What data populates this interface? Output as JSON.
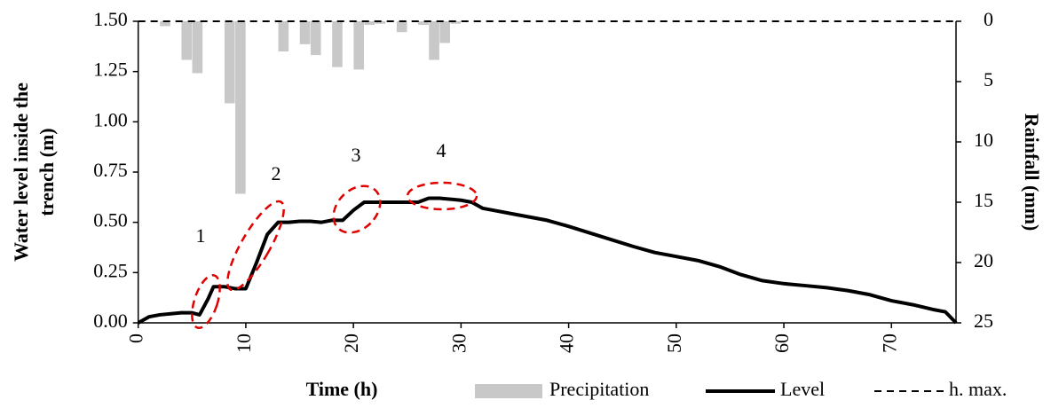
{
  "chart_data": {
    "type": "combo",
    "xlabel": "Time (h)",
    "ylabel": [
      "Water level inside the",
      "trench (m)"
    ],
    "y2label": "Rainfall (mm)",
    "xlim": [
      0,
      76
    ],
    "xticks": [
      0,
      10,
      20,
      30,
      40,
      50,
      60,
      70
    ],
    "ylim": [
      0,
      1.5
    ],
    "yticks": [
      {
        "value": 0,
        "label": "0.00"
      },
      {
        "value": 0.25,
        "label": "0.25"
      },
      {
        "value": 0.5,
        "label": "0.50"
      },
      {
        "value": 0.75,
        "label": "0.75"
      },
      {
        "value": 1,
        "label": "1.00"
      },
      {
        "value": 1.25,
        "label": "1.25"
      },
      {
        "value": 1.5,
        "label": "1.50"
      }
    ],
    "y2lim": [
      25,
      0
    ],
    "y2ticks": [
      0,
      5,
      10,
      15,
      20,
      25
    ],
    "annotations": [
      "1",
      "2",
      "3",
      "4"
    ],
    "series": [
      {
        "name": "Precipitation",
        "type": "bar",
        "axis": "y2",
        "color": "#c8c8c8",
        "x": [
          2.5,
          4.5,
          5.5,
          8.5,
          9.5,
          13.5,
          15.5,
          16.5,
          18.5,
          20.5,
          21.5,
          22.5,
          24.5,
          26.5,
          27.5,
          28.5,
          29.5
        ],
        "values": [
          0.4,
          3.2,
          4.3,
          6.8,
          14.3,
          2.5,
          1.9,
          2.8,
          3.8,
          4.0,
          0.3,
          0.2,
          0.9,
          0.3,
          3.2,
          1.8,
          0.2
        ]
      },
      {
        "name": "Level",
        "type": "line",
        "color": "#000000",
        "x": [
          0,
          1,
          2,
          4,
          5,
          5.7,
          6.5,
          7,
          8,
          9,
          10,
          11,
          12,
          13,
          14,
          15,
          16,
          17,
          18,
          19,
          20,
          21,
          22,
          24,
          26,
          27,
          28,
          30,
          31,
          32,
          33,
          35,
          38,
          40,
          43,
          46,
          48,
          50,
          52,
          54,
          56,
          58,
          60,
          62,
          64,
          66,
          68,
          70,
          72,
          74,
          75,
          76
        ],
        "values": [
          0,
          0.03,
          0.04,
          0.05,
          0.05,
          0.04,
          0.12,
          0.18,
          0.18,
          0.17,
          0.17,
          0.3,
          0.44,
          0.5,
          0.5,
          0.505,
          0.505,
          0.5,
          0.51,
          0.51,
          0.56,
          0.6,
          0.6,
          0.6,
          0.6,
          0.62,
          0.62,
          0.61,
          0.6,
          0.57,
          0.56,
          0.54,
          0.51,
          0.48,
          0.43,
          0.38,
          0.35,
          0.33,
          0.31,
          0.28,
          0.24,
          0.21,
          0.195,
          0.185,
          0.175,
          0.16,
          0.14,
          0.11,
          0.09,
          0.065,
          0.055,
          0
        ]
      },
      {
        "name": "h. max.",
        "type": "hline",
        "color": "#000000",
        "dashed": true,
        "values": [
          1.5
        ]
      }
    ]
  }
}
